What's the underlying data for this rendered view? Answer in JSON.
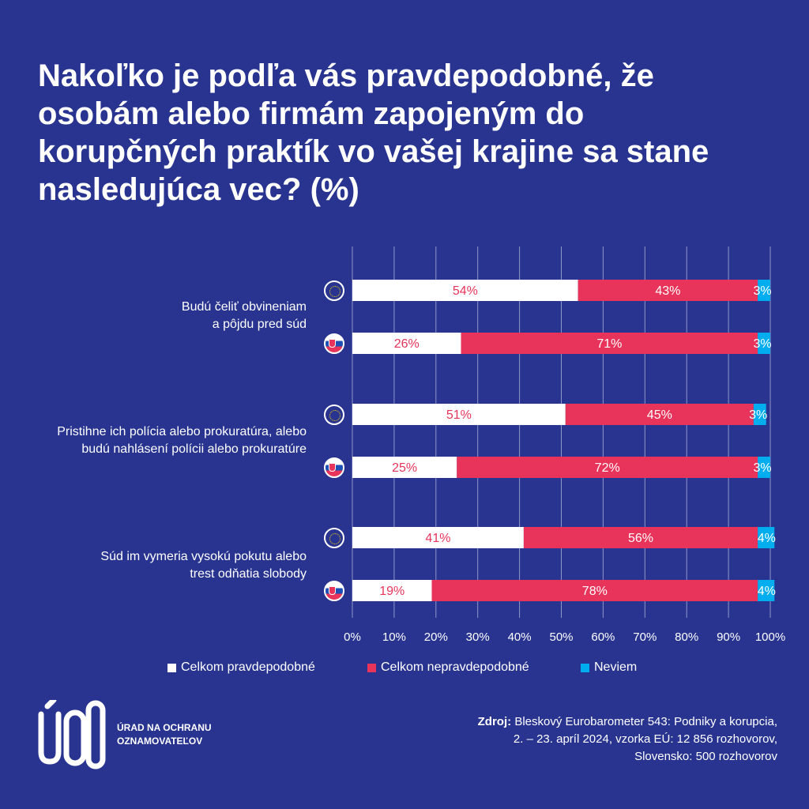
{
  "title": "Nakoľko je podľa vás pravdepodobné, že osobám alebo firmám zapojeným do korupčných praktík vo vašej krajine sa stane nasledujúca vec? (%)",
  "colors": {
    "background": "#283490",
    "likely": "#ffffff",
    "unlikely": "#e8345a",
    "dont_know": "#00aeef"
  },
  "chart_data": {
    "type": "bar",
    "orientation": "horizontal",
    "stacked": true,
    "title": "Nakoľko je podľa vás pravdepodobné, že osobám alebo firmám zapojeným do korupčných praktík vo vašej krajine sa stane nasledujúca vec? (%)",
    "categories": [
      "Budú čeliť obvineniam\na pôjdu pred súd",
      "Pristihne ich polícia alebo prokuratúra, alebo\nbudú nahlásení polícii alebo prokuratúre",
      "Súd im vymeria vysokú pokutu alebo\ntrest odňatia slobody"
    ],
    "groups": [
      "EU-flag-icon",
      "Slovakia-flag-icon"
    ],
    "rows": [
      {
        "category": 0,
        "flag": "eu",
        "values": [
          54,
          43,
          3
        ]
      },
      {
        "category": 0,
        "flag": "sk",
        "values": [
          26,
          71,
          3
        ]
      },
      {
        "category": 1,
        "flag": "eu",
        "values": [
          51,
          45,
          3
        ]
      },
      {
        "category": 1,
        "flag": "sk",
        "values": [
          25,
          72,
          3
        ]
      },
      {
        "category": 2,
        "flag": "eu",
        "values": [
          41,
          56,
          4
        ]
      },
      {
        "category": 2,
        "flag": "sk",
        "values": [
          19,
          78,
          4
        ]
      }
    ],
    "series": [
      {
        "name": "Celkom pravdepodobné",
        "color": "#ffffff"
      },
      {
        "name": "Celkom nepravdepodobné",
        "color": "#e8345a"
      },
      {
        "name": "Neviem",
        "color": "#00aeef"
      }
    ],
    "xlim": [
      0,
      100
    ],
    "xticks": [
      "0%",
      "10%",
      "20%",
      "30%",
      "40%",
      "50%",
      "60%",
      "70%",
      "80%",
      "90%",
      "100%"
    ],
    "grid": true,
    "legend": "bottom"
  },
  "logo": {
    "mark": "ÚOO",
    "text_line1": "ÚRAD NA OCHRANU",
    "text_line2": "OZNAMOVATEĽOV"
  },
  "source": {
    "label": "Zdroj:",
    "line1": "Bleskový Eurobarometer 543: Podniky a korupcia,",
    "line2": "2. – 23. apríl 2024, vzorka EÚ: 12 856 rozhovorov,",
    "line3": "Slovensko: 500 rozhovorov"
  }
}
